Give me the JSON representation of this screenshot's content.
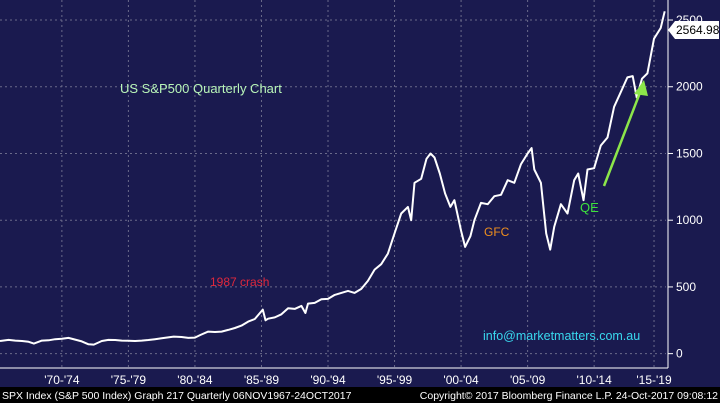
{
  "chart_data": {
    "type": "line",
    "title": "US S&P500 Quarterly Chart",
    "xlabel": "",
    "ylabel": "",
    "xlim": [
      1967.85,
      2017.9
    ],
    "ylim": [
      -100,
      2650
    ],
    "grid": true,
    "y_ticks": [
      0,
      500,
      1000,
      1500,
      2000,
      2500
    ],
    "x_ticks": [
      {
        "label": "'70-'74",
        "year": 1972.5
      },
      {
        "label": "'75-'79",
        "year": 1977.5
      },
      {
        "label": "'80-'84",
        "year": 1982.5
      },
      {
        "label": "'85-'89",
        "year": 1987.5
      },
      {
        "label": "'90-'94",
        "year": 1992.5
      },
      {
        "label": "'95-'99",
        "year": 1997.5
      },
      {
        "label": "'00-'04",
        "year": 2002.5
      },
      {
        "label": "'05-'09",
        "year": 2007.5
      },
      {
        "label": "'10-'14",
        "year": 2012.5
      },
      {
        "label": "'15-'19",
        "year": 2017.0
      }
    ],
    "series": [
      {
        "name": "",
        "color": "#ffffff",
        "x": [
          1967.85,
          1968.5,
          1969.0,
          1969.5,
          1970.0,
          1970.4,
          1971.0,
          1971.5,
          1972.0,
          1972.5,
          1973.0,
          1973.5,
          1974.0,
          1974.5,
          1974.9,
          1975.5,
          1976.0,
          1976.5,
          1977.0,
          1977.5,
          1978.0,
          1978.5,
          1979.0,
          1979.5,
          1980.0,
          1980.9,
          1981.5,
          1982.0,
          1982.5,
          1982.9,
          1983.5,
          1984.0,
          1984.5,
          1985.0,
          1985.5,
          1986.0,
          1986.5,
          1987.0,
          1987.6,
          1987.8,
          1988.0,
          1988.5,
          1989.0,
          1989.5,
          1990.0,
          1990.5,
          1990.8,
          1991.0,
          1991.5,
          1992.0,
          1992.5,
          1993.0,
          1993.5,
          1994.0,
          1994.5,
          1995.0,
          1995.5,
          1996.0,
          1996.5,
          1997.0,
          1997.5,
          1998.0,
          1998.5,
          1998.75,
          1999.0,
          1999.5,
          1999.9,
          2000.2,
          2000.5,
          2000.9,
          2001.3,
          2001.7,
          2002.0,
          2002.5,
          2002.8,
          2003.2,
          2003.5,
          2004.0,
          2004.5,
          2005.0,
          2005.5,
          2006.0,
          2006.5,
          2007.0,
          2007.5,
          2007.8,
          2008.0,
          2008.5,
          2008.9,
          2009.2,
          2009.5,
          2010.0,
          2010.5,
          2011.0,
          2011.3,
          2011.7,
          2012.0,
          2012.5,
          2013.0,
          2013.5,
          2014.0,
          2014.5,
          2015.0,
          2015.4,
          2015.7,
          2016.1,
          2016.5,
          2017.0,
          2017.5,
          2017.8
        ],
        "values": [
          95,
          103,
          98,
          95,
          89,
          75,
          98,
          100,
          108,
          112,
          118,
          105,
          92,
          70,
          68,
          95,
          103,
          102,
          98,
          97,
          95,
          98,
          102,
          108,
          115,
          128,
          125,
          118,
          120,
          140,
          165,
          162,
          165,
          178,
          192,
          210,
          240,
          260,
          330,
          250,
          262,
          272,
          295,
          340,
          335,
          358,
          305,
          375,
          380,
          408,
          410,
          440,
          455,
          470,
          455,
          485,
          545,
          630,
          670,
          750,
          900,
          1050,
          1100,
          1000,
          1280,
          1310,
          1460,
          1500,
          1470,
          1350,
          1200,
          1100,
          1150,
          920,
          800,
          880,
          1000,
          1130,
          1120,
          1180,
          1190,
          1300,
          1280,
          1420,
          1500,
          1540,
          1380,
          1280,
          900,
          780,
          950,
          1120,
          1050,
          1300,
          1350,
          1150,
          1380,
          1390,
          1560,
          1620,
          1850,
          1960,
          2070,
          2080,
          1920,
          2060,
          2100,
          2360,
          2440,
          2564.98
        ]
      }
    ],
    "last_value_label": "2564.98",
    "annotations": [
      {
        "text": "1987 crash",
        "color": "#e0283c"
      },
      {
        "text": "GFC",
        "color": "#f0901e"
      },
      {
        "text": "QE",
        "color": "#3de33d"
      }
    ],
    "watermark": "info@marketmatters.com.au",
    "footer": {
      "left": "SPX Index (S&P 500 Index) Graph 217  Quarterly 06NOV1967-24OCT2017",
      "right": "Copyright© 2017 Bloomberg Finance L.P.   24-Oct-2017 09:08:12"
    },
    "colors": {
      "background": "#1a1a4f",
      "grid": "#6a6a8a",
      "line": "#ffffff",
      "title": "#b8f5b8",
      "watermark": "#39d8ee",
      "arrow": "#8ce64a",
      "footer_bg": "#000000"
    }
  }
}
